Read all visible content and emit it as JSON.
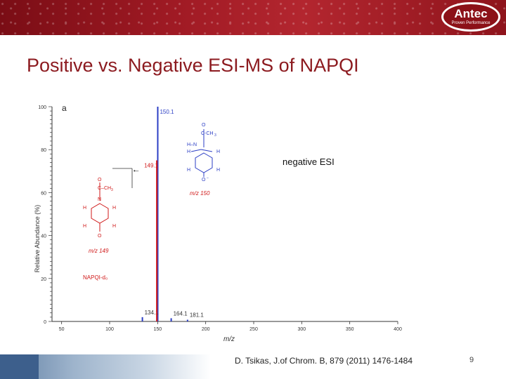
{
  "slide": {
    "title": "Positive vs. Negative ESI-MS of NAPQI",
    "citation": "D. Tsikas, J.of Chrom. B, 879 (2011) 1476-1484",
    "page_number": "9",
    "logo": {
      "word": "Antec",
      "tagline": "Proven Performance"
    }
  },
  "colors": {
    "banner": "#9b1b25",
    "title": "#8c1a1f",
    "blue": "#2b3ec5",
    "red": "#d01a1a",
    "axis": "#333333"
  },
  "chart_data": {
    "type": "bar",
    "panel_label": "a",
    "xlabel": "m/z",
    "ylabel": "Relative Abundance (%)",
    "xlim": [
      40,
      400
    ],
    "ylim": [
      0,
      100
    ],
    "x_ticks": [
      50,
      100,
      150,
      200,
      250,
      300,
      350,
      400
    ],
    "y_ticks": [
      0,
      20,
      40,
      60,
      80,
      100
    ],
    "series": [
      {
        "color": "blue",
        "peaks": [
          {
            "x": 150.1,
            "y": 100,
            "label": "150.1"
          },
          {
            "x": 134.1,
            "y": 2.0,
            "label": "134.1"
          },
          {
            "x": 164.1,
            "y": 1.5,
            "label": "164.1"
          },
          {
            "x": 181.1,
            "y": 0.8,
            "label": "181.1"
          }
        ]
      },
      {
        "color": "red",
        "peaks": [
          {
            "x": 149.1,
            "y": 75,
            "label": "149.1"
          }
        ]
      }
    ],
    "annotations": [
      {
        "text": "negative ESI",
        "color": "black"
      },
      {
        "text": "m/z 150",
        "color": "red"
      },
      {
        "text": "m/z 149",
        "color": "red"
      },
      {
        "text": "NAPQI-d₀",
        "color": "red"
      }
    ]
  }
}
